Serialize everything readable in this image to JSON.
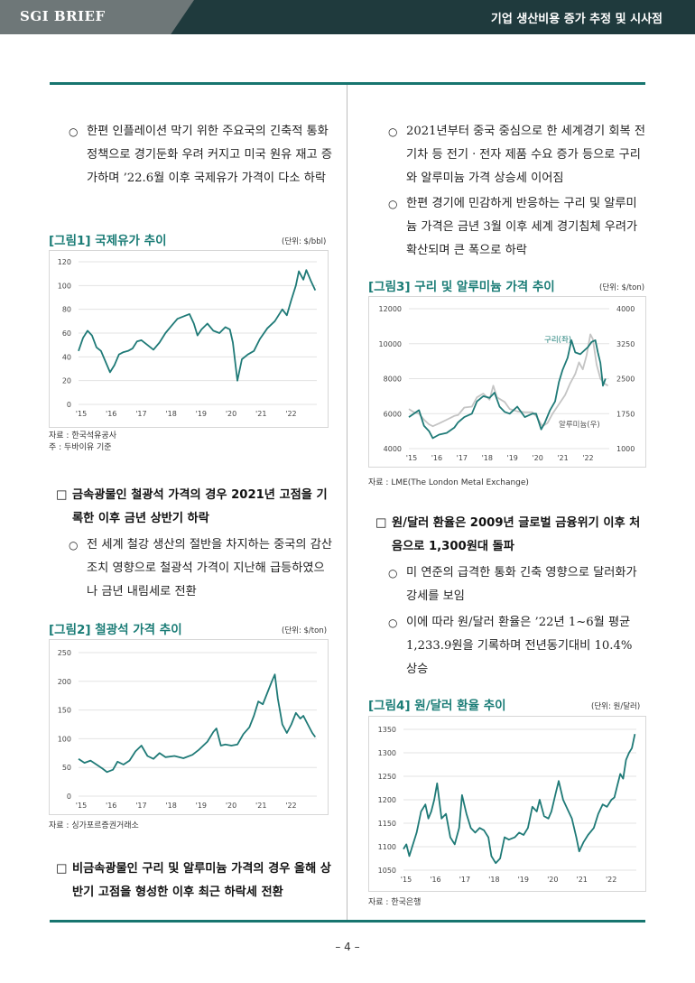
{
  "header": {
    "brand": "SGI BRIEF",
    "title": "기업 생산비용 증가 추정 및 시사점"
  },
  "page_number": "– 4 –",
  "left": {
    "p1": {
      "bullet": "○",
      "text": "한편 인플레이션 막기 위한 주요국의 긴축적 통화정책으로 경기둔화 우려 커지고 미국 원유 재고 증가하며 ’22.6월 이후 국제유가 가격이 다소 하락"
    },
    "fig1": {
      "title": "[그림1] 국제유가 추이",
      "unit": "(단위: $/bbl)",
      "source": "자료 : 한국석유공사",
      "note": " 주 : 두바이유 기준"
    },
    "s1": {
      "bullet": "□",
      "text": "금속광물인 철광석 가격의 경우 2021년 고점을 기록한 이후 금년 상반기 하락"
    },
    "p2": {
      "bullet": "○",
      "text": "전 세계 철강 생산의 절반을 차지하는 중국의 감산 조치 영향으로 철광석 가격이 지난해 급등하였으나 금년 내림세로 전환"
    },
    "fig2": {
      "title": "[그림2] 철광석 가격 추이",
      "unit": "(단위: $/ton)",
      "source": "자료 : 싱가포르증권거래소"
    },
    "s2": {
      "bullet": "□",
      "text": "비금속광물인 구리 및 알루미늄 가격의 경우 올해 상반기 고점을 형성한 이후 최근 하락세 전환"
    }
  },
  "right": {
    "p1": {
      "bullet": "○",
      "text": "2021년부터 중국 중심으로 한 세계경기 회복 전기차 등 전기ㆍ전자 제품 수요 증가 등으로 구리와 알루미늄 가격 상승세 이어짐"
    },
    "p2": {
      "bullet": "○",
      "text": "한편 경기에 민감하게 반응하는 구리 및 알루미늄 가격은 금년 3월 이후 세계 경기침체 우려가 확산되며 큰 폭으로 하락"
    },
    "fig3": {
      "title": "[그림3] 구리 및 알루미늄 가격 추이",
      "unit": "(단위: $/ton)",
      "source": "자료 : LME(The London Metal Exchange)",
      "copper_label": "구리(좌)",
      "aluminum_label": "알루미늄(우)"
    },
    "s1": {
      "bullet": "□",
      "text": "원/달러 환율은 2009년 글로벌 금융위기 이후 처음으로 1,300원대 돌파"
    },
    "p3": {
      "bullet": "○",
      "text": "미 연준의 급격한 통화 긴축 영향으로 달러화가 강세를 보임"
    },
    "p4": {
      "bullet": "○",
      "text": "이에 따라 원/달러 환율은 ’22년 1~6월 평균 1,233.9원을 기록하며 전년동기대비 10.4% 상승"
    },
    "fig4": {
      "title": "[그림4] 원/달러 환율 추이",
      "unit": "(단위: 원/달러)",
      "source": "자료 : 한국은행"
    }
  },
  "colors": {
    "header_dark": "#1f3a3d",
    "brand_gray": "#6e7778",
    "accent_teal": "#1a7c76",
    "line_teal": "#1f7a77",
    "aluminum_gray": "#c4c4c4"
  },
  "chart_data": [
    {
      "id": "fig1",
      "type": "line",
      "title": "[그림1] 국제유가 추이",
      "ylabel": "$/bbl",
      "xticks": [
        "'15",
        "'16",
        "'17",
        "'18",
        "'19",
        "'20",
        "'21",
        "'22"
      ],
      "yticks": [
        0,
        20,
        40,
        60,
        80,
        100,
        120
      ],
      "ylim": [
        0,
        120
      ],
      "xlim": [
        2015.0,
        2022.95
      ],
      "series": [
        {
          "x": [
            2015.0,
            2015.15,
            2015.3,
            2015.45,
            2015.6,
            2015.75,
            2015.9,
            2016.05,
            2016.2,
            2016.35,
            2016.5,
            2016.65,
            2016.8,
            2016.95,
            2017.1,
            2017.3,
            2017.5,
            2017.7,
            2017.9,
            2018.1,
            2018.3,
            2018.5,
            2018.7,
            2018.85,
            2018.97,
            2019.1,
            2019.3,
            2019.5,
            2019.7,
            2019.9,
            2020.05,
            2020.15,
            2020.3,
            2020.45,
            2020.65,
            2020.85,
            2021.05,
            2021.3,
            2021.55,
            2021.8,
            2021.95,
            2022.1,
            2022.25,
            2022.35,
            2022.5,
            2022.6,
            2022.75,
            2022.9
          ],
          "values": [
            45,
            56,
            62,
            58,
            48,
            45,
            36,
            27,
            33,
            42,
            44,
            45,
            47,
            53,
            54,
            50,
            46,
            52,
            60,
            66,
            72,
            74,
            76,
            68,
            58,
            63,
            68,
            62,
            60,
            65,
            63,
            52,
            20,
            38,
            42,
            45,
            55,
            64,
            70,
            80,
            75,
            88,
            100,
            112,
            105,
            113,
            104,
            96
          ]
        }
      ]
    },
    {
      "id": "fig2",
      "type": "line",
      "title": "[그림2] 철광석 가격 추이",
      "ylabel": "$/ton",
      "xticks": [
        "'15",
        "'16",
        "'17",
        "'18",
        "'19",
        "'20",
        "'21",
        "'22"
      ],
      "yticks": [
        0,
        50,
        100,
        150,
        200,
        250
      ],
      "ylim": [
        0,
        250
      ],
      "xlim": [
        2015.0,
        2022.95
      ],
      "series": [
        {
          "x": [
            2015.0,
            2015.2,
            2015.4,
            2015.6,
            2015.8,
            2015.95,
            2016.15,
            2016.3,
            2016.5,
            2016.7,
            2016.9,
            2017.1,
            2017.3,
            2017.5,
            2017.7,
            2017.9,
            2018.2,
            2018.5,
            2018.8,
            2019.0,
            2019.3,
            2019.5,
            2019.6,
            2019.75,
            2019.9,
            2020.1,
            2020.3,
            2020.5,
            2020.7,
            2020.85,
            2021.0,
            2021.15,
            2021.3,
            2021.45,
            2021.55,
            2021.65,
            2021.8,
            2021.95,
            2022.1,
            2022.25,
            2022.4,
            2022.5,
            2022.65,
            2022.8,
            2022.9
          ],
          "values": [
            65,
            58,
            62,
            55,
            48,
            42,
            46,
            60,
            55,
            62,
            78,
            88,
            70,
            65,
            75,
            68,
            70,
            66,
            72,
            80,
            95,
            112,
            118,
            88,
            90,
            88,
            90,
            108,
            120,
            140,
            165,
            160,
            180,
            200,
            212,
            170,
            125,
            110,
            125,
            145,
            135,
            140,
            125,
            110,
            103
          ]
        }
      ]
    },
    {
      "id": "fig3",
      "type": "line",
      "title": "[그림3] 구리 및 알루미늄 가격 추이",
      "xticks": [
        "'15",
        "'16",
        "'17",
        "'18",
        "'19",
        "'20",
        "'21",
        "'22"
      ],
      "yticks_left": [
        4000,
        6000,
        8000,
        10000,
        12000
      ],
      "yticks_right": [
        1000,
        1750,
        2500,
        3250,
        4000
      ],
      "ylim_left": [
        4000,
        12000
      ],
      "ylim_right": [
        1000,
        4000
      ],
      "xlim": [
        2015.0,
        2022.95
      ],
      "series": [
        {
          "name": "구리(좌)",
          "axis": "left",
          "x": [
            2015.0,
            2015.2,
            2015.4,
            2015.6,
            2015.8,
            2015.95,
            2016.2,
            2016.5,
            2016.8,
            2016.95,
            2017.2,
            2017.5,
            2017.7,
            2017.95,
            2018.2,
            2018.4,
            2018.6,
            2018.8,
            2019.0,
            2019.3,
            2019.6,
            2019.9,
            2020.05,
            2020.25,
            2020.4,
            2020.6,
            2020.8,
            2020.95,
            2021.1,
            2021.3,
            2021.45,
            2021.6,
            2021.8,
            2021.95,
            2022.1,
            2022.25,
            2022.4,
            2022.5,
            2022.6,
            2022.7,
            2022.8
          ],
          "values": [
            5800,
            6000,
            6200,
            5300,
            5000,
            4600,
            4800,
            4900,
            5200,
            5500,
            5800,
            6000,
            6700,
            7000,
            6900,
            7200,
            6400,
            6100,
            6000,
            6400,
            5800,
            6000,
            6000,
            5100,
            5500,
            6200,
            6700,
            7800,
            8500,
            9200,
            10200,
            9500,
            9400,
            9600,
            9800,
            10100,
            10200,
            9500,
            8900,
            7600,
            8000
          ]
        },
        {
          "name": "알루미늄(우)",
          "axis": "right",
          "x": [
            2015.0,
            2015.2,
            2015.4,
            2015.6,
            2015.8,
            2015.95,
            2016.2,
            2016.5,
            2016.8,
            2016.95,
            2017.2,
            2017.5,
            2017.7,
            2017.95,
            2018.2,
            2018.35,
            2018.5,
            2018.8,
            2019.0,
            2019.3,
            2019.6,
            2019.9,
            2020.05,
            2020.3,
            2020.5,
            2020.7,
            2020.95,
            2021.2,
            2021.4,
            2021.6,
            2021.75,
            2021.9,
            2022.05,
            2022.2,
            2022.3,
            2022.45,
            2022.6,
            2022.75,
            2022.9
          ],
          "values": [
            1850,
            1780,
            1750,
            1620,
            1520,
            1480,
            1540,
            1620,
            1700,
            1720,
            1880,
            1900,
            2100,
            2180,
            2050,
            2350,
            2100,
            2000,
            1850,
            1800,
            1780,
            1780,
            1700,
            1480,
            1550,
            1750,
            1950,
            2150,
            2400,
            2600,
            2850,
            2700,
            3000,
            3450,
            3350,
            2800,
            2500,
            2400,
            2350
          ]
        }
      ]
    },
    {
      "id": "fig4",
      "type": "line",
      "title": "[그림4] 원/달러 환율 추이",
      "ylabel": "원/달러",
      "xticks": [
        "'15",
        "'16",
        "'17",
        "'18",
        "'19",
        "'20",
        "'21",
        "'22"
      ],
      "yticks": [
        1050,
        1100,
        1150,
        1200,
        1250,
        1300,
        1350
      ],
      "ylim": [
        1050,
        1350
      ],
      "xlim": [
        2015.0,
        2022.95
      ],
      "series": [
        {
          "x": [
            2015.0,
            2015.1,
            2015.2,
            2015.3,
            2015.45,
            2015.6,
            2015.75,
            2015.85,
            2015.95,
            2016.05,
            2016.15,
            2016.3,
            2016.45,
            2016.6,
            2016.75,
            2016.9,
            2017.0,
            2017.15,
            2017.3,
            2017.45,
            2017.6,
            2017.75,
            2017.9,
            2018.0,
            2018.15,
            2018.3,
            2018.45,
            2018.6,
            2018.8,
            2018.95,
            2019.1,
            2019.25,
            2019.4,
            2019.55,
            2019.65,
            2019.8,
            2019.95,
            2020.05,
            2020.2,
            2020.3,
            2020.45,
            2020.6,
            2020.75,
            2020.9,
            2021.0,
            2021.15,
            2021.3,
            2021.5,
            2021.65,
            2021.8,
            2021.95,
            2022.1,
            2022.2,
            2022.3,
            2022.4,
            2022.5,
            2022.6,
            2022.7,
            2022.8,
            2022.9
          ],
          "values": [
            1095,
            1105,
            1080,
            1100,
            1130,
            1175,
            1190,
            1160,
            1175,
            1200,
            1235,
            1160,
            1170,
            1120,
            1105,
            1140,
            1210,
            1170,
            1140,
            1130,
            1140,
            1135,
            1120,
            1080,
            1065,
            1075,
            1120,
            1115,
            1120,
            1130,
            1125,
            1140,
            1185,
            1175,
            1200,
            1165,
            1160,
            1175,
            1215,
            1240,
            1200,
            1180,
            1160,
            1120,
            1090,
            1110,
            1125,
            1140,
            1170,
            1190,
            1185,
            1200,
            1205,
            1230,
            1255,
            1245,
            1285,
            1300,
            1310,
            1340
          ]
        }
      ]
    }
  ]
}
